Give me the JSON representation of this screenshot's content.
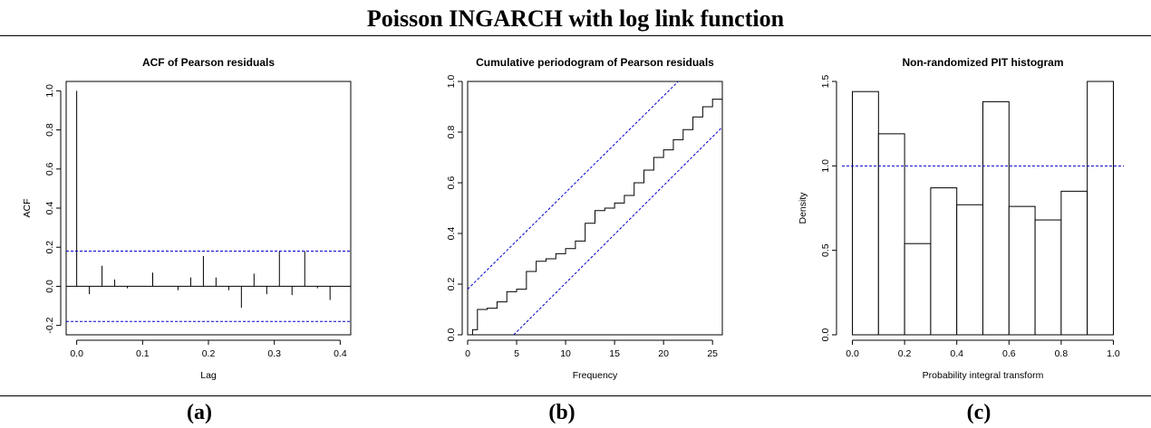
{
  "figure": {
    "title": "Poisson INGARCH with log link function",
    "captions": [
      "(a)",
      "(b)",
      "(c)"
    ]
  },
  "chart_data": [
    {
      "type": "bar",
      "subtype": "acf-stem",
      "title": "ACF of Pearson residuals",
      "xlabel": "Lag",
      "ylabel": "ACF",
      "xlim": [
        0,
        0.4
      ],
      "ylim": [
        -0.2,
        1.0
      ],
      "xticks": [
        "0.0",
        "0.1",
        "0.2",
        "0.3",
        "0.4"
      ],
      "yticks": [
        "-0.2",
        "0.0",
        "0.2",
        "0.4",
        "0.6",
        "0.8",
        "1.0"
      ],
      "x": [
        0.0,
        0.0192,
        0.0385,
        0.0577,
        0.0769,
        0.0962,
        0.1154,
        0.1346,
        0.1538,
        0.1731,
        0.1923,
        0.2115,
        0.2308,
        0.25,
        0.2692,
        0.2885,
        0.3077,
        0.3269,
        0.3462,
        0.3654,
        0.3846
      ],
      "values": [
        1.0,
        -0.04,
        0.105,
        0.035,
        -0.01,
        0.0,
        0.07,
        0.0,
        -0.02,
        0.045,
        0.155,
        0.045,
        -0.02,
        -0.11,
        0.065,
        -0.04,
        0.18,
        -0.045,
        0.18,
        -0.01,
        -0.07
      ],
      "conf_band": [
        -0.18,
        0.18
      ],
      "band_color": "#0000cc"
    },
    {
      "type": "line",
      "subtype": "step",
      "title": "Cumulative periodogram of Pearson residuals",
      "xlabel": "Frequency",
      "ylabel": "",
      "xlim": [
        0,
        26
      ],
      "ylim": [
        0,
        1.0
      ],
      "xticks": [
        "0",
        "5",
        "10",
        "15",
        "20",
        "25"
      ],
      "yticks": [
        "0.0",
        "0.2",
        "0.4",
        "0.6",
        "0.8",
        "1.0"
      ],
      "x": [
        0,
        0.5,
        1,
        2,
        3,
        4,
        5,
        6,
        7,
        8,
        9,
        10,
        11,
        12,
        13,
        14,
        15,
        16,
        17,
        18,
        19,
        20,
        21,
        22,
        23,
        24,
        25,
        26
      ],
      "y": [
        0,
        0.02,
        0.1,
        0.105,
        0.13,
        0.17,
        0.18,
        0.25,
        0.29,
        0.3,
        0.32,
        0.34,
        0.37,
        0.44,
        0.49,
        0.5,
        0.52,
        0.55,
        0.6,
        0.65,
        0.7,
        0.73,
        0.77,
        0.81,
        0.86,
        0.9,
        0.93,
        0.95
      ],
      "band_upper": {
        "x": [
          0,
          21.5
        ],
        "y": [
          0.18,
          1.0
        ]
      },
      "band_lower": {
        "x": [
          4.7,
          26
        ],
        "y": [
          0,
          0.82
        ]
      },
      "band_color": "#0000cc"
    },
    {
      "type": "bar",
      "subtype": "histogram",
      "title": "Non-randomized PIT histogram",
      "xlabel": "Probability integral transform",
      "ylabel": "Density",
      "xlim": [
        0,
        1.0
      ],
      "ylim": [
        0,
        1.5
      ],
      "xticks": [
        "0.0",
        "0.2",
        "0.4",
        "0.6",
        "0.8",
        "1.0"
      ],
      "yticks": [
        "0.0",
        "0.5",
        "1.0",
        "1.5"
      ],
      "bin_edges": [
        0,
        0.1,
        0.2,
        0.3,
        0.4,
        0.5,
        0.6,
        0.7,
        0.8,
        0.9,
        1.0
      ],
      "values": [
        1.44,
        1.19,
        0.54,
        0.87,
        0.77,
        1.38,
        0.76,
        0.68,
        0.85,
        1.5
      ],
      "reference_line": 1.0,
      "band_color": "#0000cc"
    }
  ]
}
